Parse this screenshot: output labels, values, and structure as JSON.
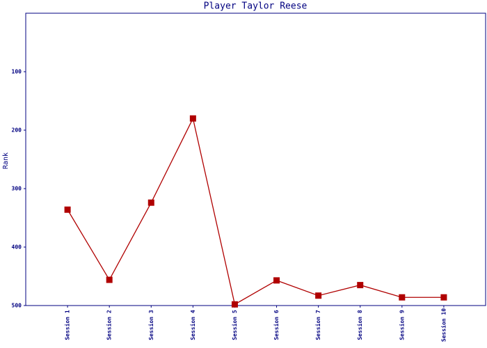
{
  "chart_data": {
    "type": "line",
    "title": "Player Taylor Reese",
    "y_label": "Rank",
    "categories": [
      "Session 1",
      "Session 2",
      "Session 3",
      "Session 4",
      "Session 5",
      "Session 6",
      "Session 7",
      "Session 8",
      "Session 9",
      "Session 10"
    ],
    "values": [
      336,
      456,
      324,
      180,
      498,
      457,
      483,
      465,
      486,
      486
    ],
    "color": "#b00000",
    "ylim": [
      0,
      500
    ],
    "y_reversed": true,
    "yticks": [
      100,
      200,
      300,
      400,
      500
    ]
  }
}
